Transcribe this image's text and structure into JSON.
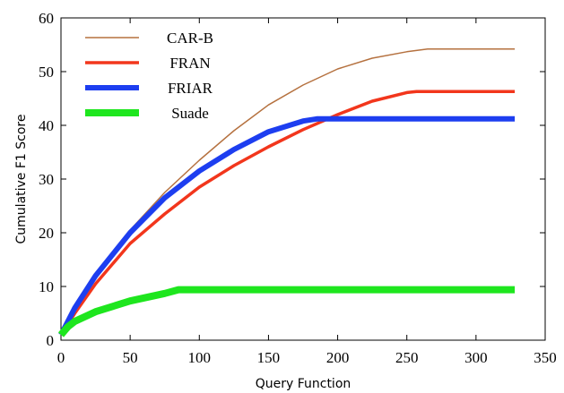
{
  "chart_data": {
    "type": "line",
    "xlabel": "Query Function",
    "ylabel": "Cumulative F1 Score",
    "xlim": [
      0,
      350
    ],
    "ylim": [
      0,
      60
    ],
    "xticks": [
      0,
      50,
      100,
      150,
      200,
      250,
      300,
      350
    ],
    "yticks": [
      0,
      10,
      20,
      30,
      40,
      50,
      60
    ],
    "legend": "upper-left",
    "series": [
      {
        "name": "CAR-B",
        "color": "#b5713f",
        "width": 1.5,
        "x": [
          0,
          10,
          25,
          50,
          75,
          100,
          125,
          150,
          175,
          200,
          225,
          250,
          265,
          300,
          328
        ],
        "values": [
          1,
          6,
          12,
          20.5,
          27.5,
          33.5,
          39,
          43.8,
          47.5,
          50.5,
          52.5,
          53.7,
          54.2,
          54.2,
          54.2
        ]
      },
      {
        "name": "FRAN",
        "color": "#f2361c",
        "width": 3.5,
        "x": [
          0,
          10,
          25,
          50,
          75,
          100,
          125,
          150,
          175,
          200,
          225,
          250,
          257,
          300,
          328
        ],
        "values": [
          1,
          5,
          10.5,
          18,
          23.5,
          28.5,
          32.5,
          36,
          39.2,
          42,
          44.5,
          46.1,
          46.3,
          46.3,
          46.3
        ]
      },
      {
        "name": "FRIAR",
        "color": "#1d3ef0",
        "width": 6,
        "x": [
          0,
          10,
          25,
          50,
          75,
          100,
          125,
          150,
          175,
          185,
          250,
          328
        ],
        "values": [
          1,
          6,
          12,
          20,
          26.5,
          31.5,
          35.5,
          38.8,
          40.8,
          41.2,
          41.2,
          41.2
        ]
      },
      {
        "name": "Suade",
        "color": "#1ee61e",
        "width": 8,
        "x": [
          0,
          5,
          10,
          25,
          50,
          75,
          85,
          200,
          328
        ],
        "values": [
          1,
          2.5,
          3.5,
          5.3,
          7.3,
          8.7,
          9.4,
          9.4,
          9.4
        ]
      }
    ]
  }
}
